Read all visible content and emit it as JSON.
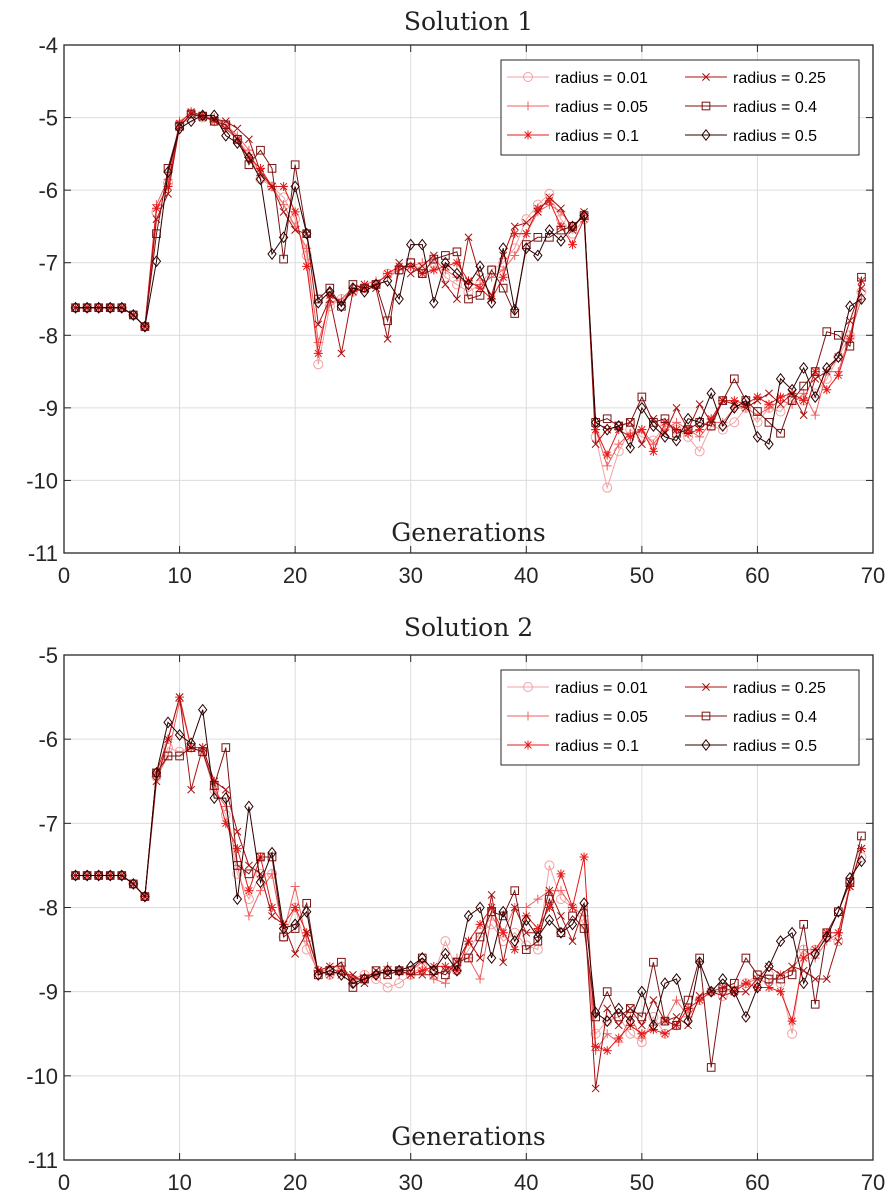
{
  "chart_data": [
    {
      "type": "line",
      "title": "Solution 1",
      "xlabel": "Generations",
      "ylabel": "",
      "xlim": [
        0,
        70
      ],
      "ylim": [
        -11,
        -4
      ],
      "xticks": [
        0,
        10,
        20,
        30,
        40,
        50,
        60,
        70
      ],
      "yticks": [
        -11,
        -10,
        -9,
        -8,
        -7,
        -6,
        -5,
        -4
      ],
      "x_tick_labels": [
        "0",
        "10",
        "20",
        "30",
        "40",
        "50",
        "60",
        "70"
      ],
      "y_tick_labels": [
        "-11",
        "-10",
        "-9",
        "-8",
        "-7",
        "-6",
        "-5",
        "-4"
      ],
      "grid": true,
      "legend_position": "top-right",
      "x_start": 1,
      "series": [
        {
          "name": "radius = 0.01",
          "color": "#f4a0a0",
          "marker": "circle",
          "values": [
            -7.62,
            -7.62,
            -7.62,
            -7.62,
            -7.62,
            -7.72,
            -7.88,
            -6.3,
            -5.9,
            -5.1,
            -5.0,
            -5.0,
            -5.05,
            -5.1,
            -5.3,
            -5.5,
            -5.85,
            -5.95,
            -6.1,
            -6.4,
            -6.9,
            -8.4,
            -7.6,
            -7.5,
            -7.4,
            -7.35,
            -7.3,
            -7.15,
            -7.1,
            -7.0,
            -7.1,
            -7.0,
            -7.2,
            -7.3,
            -7.4,
            -7.3,
            -7.1,
            -7.0,
            -6.8,
            -6.4,
            -6.2,
            -6.05,
            -6.4,
            -6.6,
            -6.4,
            -9.4,
            -10.1,
            -9.6,
            -9.3,
            -9.4,
            -9.45,
            -9.25,
            -9.3,
            -9.4,
            -9.6,
            -9.25,
            -9.3,
            -9.2,
            -9.0,
            -9.2,
            -9.0,
            -9.05,
            -8.85,
            -8.9,
            -8.8,
            -8.6,
            -8.3,
            -8.0,
            -7.4
          ]
        },
        {
          "name": "radius = 0.05",
          "color": "#ef6060",
          "marker": "plus",
          "values": [
            -7.62,
            -7.62,
            -7.62,
            -7.62,
            -7.62,
            -7.72,
            -7.88,
            -6.2,
            -5.85,
            -5.05,
            -4.95,
            -4.98,
            -5.0,
            -5.1,
            -5.25,
            -5.45,
            -5.8,
            -5.95,
            -6.2,
            -6.5,
            -6.8,
            -8.1,
            -7.55,
            -7.5,
            -7.35,
            -7.3,
            -7.25,
            -7.2,
            -7.1,
            -7.05,
            -7.0,
            -6.95,
            -7.1,
            -7.2,
            -7.3,
            -7.3,
            -7.2,
            -7.1,
            -6.9,
            -6.6,
            -6.3,
            -6.2,
            -6.3,
            -6.5,
            -6.35,
            -9.3,
            -9.8,
            -9.5,
            -9.35,
            -9.3,
            -9.5,
            -9.3,
            -9.2,
            -9.3,
            -9.4,
            -9.2,
            -9.2,
            -9.0,
            -9.0,
            -9.1,
            -9.0,
            -8.9,
            -8.95,
            -8.8,
            -9.1,
            -8.5,
            -8.5,
            -8.0,
            -7.5
          ]
        },
        {
          "name": "radius = 0.1",
          "color": "#e81818",
          "marker": "star",
          "values": [
            -7.62,
            -7.62,
            -7.62,
            -7.62,
            -7.62,
            -7.72,
            -7.88,
            -6.25,
            -5.95,
            -5.08,
            -4.92,
            -4.97,
            -5.05,
            -5.15,
            -5.3,
            -5.55,
            -5.7,
            -5.95,
            -5.95,
            -6.3,
            -7.05,
            -8.25,
            -7.45,
            -7.55,
            -7.4,
            -7.35,
            -7.3,
            -7.15,
            -7.05,
            -7.05,
            -7.15,
            -7.1,
            -7.05,
            -7.0,
            -7.25,
            -7.35,
            -7.5,
            -7.2,
            -6.6,
            -6.6,
            -6.25,
            -6.15,
            -6.5,
            -6.75,
            -6.4,
            -9.3,
            -9.65,
            -9.3,
            -9.4,
            -9.3,
            -9.6,
            -9.2,
            -9.3,
            -9.35,
            -9.3,
            -9.15,
            -8.9,
            -8.9,
            -8.95,
            -8.85,
            -8.95,
            -8.85,
            -8.8,
            -8.9,
            -8.5,
            -8.75,
            -8.55,
            -8.05,
            -7.25
          ]
        },
        {
          "name": "radius = 0.25",
          "color": "#a61010",
          "marker": "cross",
          "values": [
            -7.62,
            -7.62,
            -7.62,
            -7.62,
            -7.62,
            -7.72,
            -7.88,
            -6.4,
            -6.05,
            -5.12,
            -4.95,
            -5.0,
            -5.02,
            -5.05,
            -5.15,
            -5.3,
            -5.75,
            -5.95,
            -6.3,
            -6.55,
            -6.6,
            -7.85,
            -7.5,
            -8.25,
            -7.4,
            -7.3,
            -7.35,
            -8.05,
            -7.0,
            -7.15,
            -7.05,
            -6.9,
            -7.3,
            -7.5,
            -6.65,
            -7.2,
            -7.45,
            -6.9,
            -6.5,
            -6.45,
            -6.3,
            -6.1,
            -6.25,
            -6.55,
            -6.3,
            -9.5,
            -9.3,
            -9.25,
            -9.2,
            -9.5,
            -9.15,
            -9.35,
            -9.0,
            -9.3,
            -8.95,
            -9.2,
            -8.9,
            -8.95,
            -9.0,
            -8.9,
            -8.8,
            -8.95,
            -8.8,
            -9.1,
            -8.6,
            -8.5,
            -8.3,
            -7.8,
            -7.35
          ]
        },
        {
          "name": "radius = 0.4",
          "color": "#7a1212",
          "marker": "square",
          "values": [
            -7.62,
            -7.62,
            -7.62,
            -7.62,
            -7.62,
            -7.72,
            -7.88,
            -6.6,
            -5.7,
            -5.12,
            -4.95,
            -4.98,
            -5.05,
            -5.1,
            -5.3,
            -5.65,
            -5.45,
            -5.7,
            -6.95,
            -5.65,
            -6.6,
            -7.5,
            -7.35,
            -7.6,
            -7.3,
            -7.35,
            -7.3,
            -7.8,
            -7.1,
            -7.0,
            -7.15,
            -6.95,
            -6.9,
            -6.85,
            -7.5,
            -7.45,
            -7.1,
            -7.35,
            -7.7,
            -6.75,
            -6.65,
            -6.65,
            -6.55,
            -6.5,
            -6.35,
            -9.2,
            -9.15,
            -9.25,
            -9.2,
            -8.85,
            -9.2,
            -9.15,
            -9.35,
            -9.3,
            -9.2,
            -9.25,
            -8.9,
            -8.6,
            -8.9,
            -9.05,
            -9.2,
            -9.35,
            -8.9,
            -8.7,
            -8.5,
            -7.95,
            -8.0,
            -8.15,
            -7.2
          ]
        },
        {
          "name": "radius = 0.5",
          "color": "#2b0000",
          "marker": "diamond",
          "values": [
            -7.62,
            -7.62,
            -7.62,
            -7.62,
            -7.62,
            -7.72,
            -7.88,
            -6.98,
            -5.75,
            -5.15,
            -5.05,
            -4.97,
            -4.97,
            -5.25,
            -5.35,
            -5.55,
            -5.85,
            -6.88,
            -6.65,
            -5.95,
            -6.6,
            -7.55,
            -7.4,
            -7.6,
            -7.35,
            -7.4,
            -7.3,
            -7.25,
            -7.5,
            -6.75,
            -6.75,
            -7.55,
            -7.0,
            -7.15,
            -7.3,
            -7.05,
            -7.55,
            -6.8,
            -7.65,
            -6.8,
            -6.9,
            -6.55,
            -6.7,
            -6.5,
            -6.35,
            -9.2,
            -9.3,
            -9.25,
            -9.55,
            -9.0,
            -9.25,
            -9.4,
            -9.45,
            -9.15,
            -9.2,
            -8.8,
            -9.25,
            -9.0,
            -8.9,
            -9.4,
            -9.5,
            -8.6,
            -8.75,
            -8.45,
            -8.85,
            -8.45,
            -8.3,
            -7.6,
            -7.5
          ]
        }
      ]
    },
    {
      "type": "line",
      "title": "Solution 2",
      "xlabel": "Generations",
      "ylabel": "",
      "xlim": [
        0,
        70
      ],
      "ylim": [
        -11,
        -5
      ],
      "xticks": [
        0,
        10,
        20,
        30,
        40,
        50,
        60,
        70
      ],
      "yticks": [
        -11,
        -10,
        -9,
        -8,
        -7,
        -6,
        -5
      ],
      "x_tick_labels": [
        "0",
        "10",
        "20",
        "30",
        "40",
        "50",
        "60",
        "70"
      ],
      "y_tick_labels": [
        "-11",
        "-10",
        "-9",
        "-8",
        "-7",
        "-6",
        "-5"
      ],
      "grid": true,
      "legend_position": "top-right",
      "x_start": 1,
      "series": [
        {
          "name": "radius = 0.01",
          "color": "#f4a0a0",
          "marker": "circle",
          "values": [
            -7.62,
            -7.62,
            -7.62,
            -7.62,
            -7.62,
            -7.72,
            -7.87,
            -6.45,
            -6.1,
            -6.15,
            -6.1,
            -6.15,
            -6.6,
            -6.9,
            -7.6,
            -7.9,
            -7.6,
            -7.6,
            -8.35,
            -8.0,
            -8.5,
            -8.75,
            -8.8,
            -8.7,
            -8.9,
            -8.8,
            -8.85,
            -8.95,
            -8.9,
            -8.8,
            -8.7,
            -8.8,
            -8.4,
            -8.75,
            -8.5,
            -8.3,
            -8.2,
            -8.4,
            -8.3,
            -8.45,
            -8.5,
            -7.5,
            -7.9,
            -8.0,
            -8.2,
            -9.5,
            -9.35,
            -9.3,
            -9.5,
            -9.6,
            -9.3,
            -9.5,
            -9.4,
            -9.2,
            -9.1,
            -9.0,
            -9.05,
            -9.0,
            -8.9,
            -8.8,
            -8.8,
            -8.9,
            -9.5,
            -8.5,
            -8.5,
            -8.35,
            -8.4,
            -7.7,
            -7.4
          ]
        },
        {
          "name": "radius = 0.05",
          "color": "#ef6060",
          "marker": "plus",
          "values": [
            -7.62,
            -7.62,
            -7.62,
            -7.62,
            -7.62,
            -7.72,
            -7.87,
            -6.45,
            -6.2,
            -5.55,
            -6.1,
            -6.15,
            -6.6,
            -6.8,
            -7.5,
            -8.1,
            -7.8,
            -7.6,
            -8.3,
            -7.75,
            -8.4,
            -8.8,
            -8.7,
            -8.7,
            -8.85,
            -8.8,
            -8.8,
            -8.7,
            -8.8,
            -8.75,
            -8.65,
            -8.85,
            -8.9,
            -8.6,
            -8.6,
            -8.85,
            -8.1,
            -8.3,
            -8.0,
            -8.0,
            -7.9,
            -7.8,
            -7.8,
            -8.0,
            -8.1,
            -9.7,
            -9.5,
            -9.6,
            -9.3,
            -9.55,
            -9.4,
            -9.35,
            -9.1,
            -9.3,
            -9.1,
            -9.0,
            -9.0,
            -8.95,
            -8.9,
            -8.85,
            -8.9,
            -8.8,
            -8.75,
            -8.5,
            -8.6,
            -8.4,
            -8.3,
            -7.75,
            -7.3
          ]
        },
        {
          "name": "radius = 0.1",
          "color": "#e81818",
          "marker": "star",
          "values": [
            -7.62,
            -7.62,
            -7.62,
            -7.62,
            -7.62,
            -7.72,
            -7.87,
            -6.4,
            -6.0,
            -5.5,
            -6.1,
            -6.1,
            -6.5,
            -7.0,
            -7.3,
            -7.8,
            -7.4,
            -8.0,
            -8.2,
            -8.0,
            -8.3,
            -8.75,
            -8.8,
            -8.75,
            -8.85,
            -8.85,
            -8.8,
            -8.75,
            -8.75,
            -8.8,
            -8.75,
            -8.7,
            -8.7,
            -8.75,
            -8.4,
            -8.2,
            -8.0,
            -8.3,
            -8.5,
            -8.1,
            -8.25,
            -8.0,
            -7.6,
            -8.0,
            -7.4,
            -9.65,
            -9.7,
            -9.55,
            -9.4,
            -9.5,
            -9.45,
            -9.5,
            -9.4,
            -9.2,
            -9.1,
            -9.0,
            -8.95,
            -9.0,
            -8.9,
            -8.95,
            -8.95,
            -9.0,
            -9.35,
            -8.6,
            -8.5,
            -8.3,
            -8.3,
            -7.75,
            -7.3
          ]
        },
        {
          "name": "radius = 0.25",
          "color": "#a61010",
          "marker": "cross",
          "values": [
            -7.62,
            -7.62,
            -7.62,
            -7.62,
            -7.62,
            -7.72,
            -7.87,
            -6.5,
            -6.0,
            -5.5,
            -6.6,
            -6.1,
            -6.5,
            -6.6,
            -7.1,
            -7.5,
            -7.6,
            -8.1,
            -8.2,
            -8.55,
            -8.3,
            -8.75,
            -8.7,
            -8.8,
            -8.8,
            -8.9,
            -8.75,
            -8.8,
            -8.75,
            -8.8,
            -8.8,
            -8.8,
            -8.75,
            -8.65,
            -8.4,
            -8.6,
            -7.85,
            -8.65,
            -8.0,
            -8.3,
            -8.3,
            -7.8,
            -8.1,
            -8.4,
            -8.0,
            -10.15,
            -9.2,
            -9.4,
            -9.2,
            -9.4,
            -9.1,
            -9.35,
            -9.3,
            -9.4,
            -9.05,
            -9.0,
            -9.05,
            -9.0,
            -9.0,
            -8.85,
            -8.7,
            -8.8,
            -8.7,
            -8.75,
            -8.85,
            -8.85,
            -8.4,
            -7.75,
            -7.3
          ]
        },
        {
          "name": "radius = 0.4",
          "color": "#7a1212",
          "marker": "square",
          "values": [
            -7.62,
            -7.62,
            -7.62,
            -7.62,
            -7.62,
            -7.72,
            -7.87,
            -6.4,
            -6.2,
            -6.2,
            -6.1,
            -6.15,
            -6.55,
            -6.1,
            -7.5,
            -7.6,
            -7.4,
            -7.4,
            -8.35,
            -8.25,
            -7.95,
            -8.8,
            -8.75,
            -8.65,
            -8.95,
            -8.85,
            -8.75,
            -8.8,
            -8.75,
            -8.75,
            -8.6,
            -8.75,
            -8.8,
            -8.65,
            -8.6,
            -8.35,
            -8.05,
            -8.1,
            -7.8,
            -8.5,
            -8.4,
            -7.9,
            -8.3,
            -8.1,
            -8.25,
            -9.3,
            -9.0,
            -9.3,
            -9.2,
            -9.3,
            -8.65,
            -9.35,
            -9.4,
            -9.1,
            -8.6,
            -9.9,
            -8.95,
            -8.9,
            -8.6,
            -8.8,
            -8.85,
            -8.85,
            -8.8,
            -8.2,
            -9.15,
            -8.3,
            -8.05,
            -7.7,
            -7.15
          ]
        },
        {
          "name": "radius = 0.5",
          "color": "#2b0000",
          "marker": "diamond",
          "values": [
            -7.62,
            -7.62,
            -7.62,
            -7.62,
            -7.62,
            -7.72,
            -7.87,
            -6.4,
            -5.8,
            -5.95,
            -6.05,
            -5.65,
            -6.7,
            -6.7,
            -7.9,
            -6.8,
            -7.7,
            -7.35,
            -8.25,
            -8.2,
            -8.05,
            -8.8,
            -8.75,
            -8.8,
            -8.9,
            -8.85,
            -8.8,
            -8.75,
            -8.75,
            -8.7,
            -8.6,
            -8.75,
            -8.55,
            -8.75,
            -8.1,
            -8.0,
            -8.6,
            -8.05,
            -8.4,
            -8.15,
            -8.35,
            -8.15,
            -8.3,
            -8.2,
            -7.95,
            -9.25,
            -9.35,
            -9.2,
            -9.35,
            -9.0,
            -9.4,
            -8.9,
            -8.85,
            -9.35,
            -8.65,
            -9.0,
            -8.85,
            -9.0,
            -9.3,
            -8.95,
            -8.7,
            -8.4,
            -8.3,
            -8.9,
            -8.55,
            -8.35,
            -8.05,
            -7.65,
            -7.45
          ]
        }
      ]
    }
  ]
}
